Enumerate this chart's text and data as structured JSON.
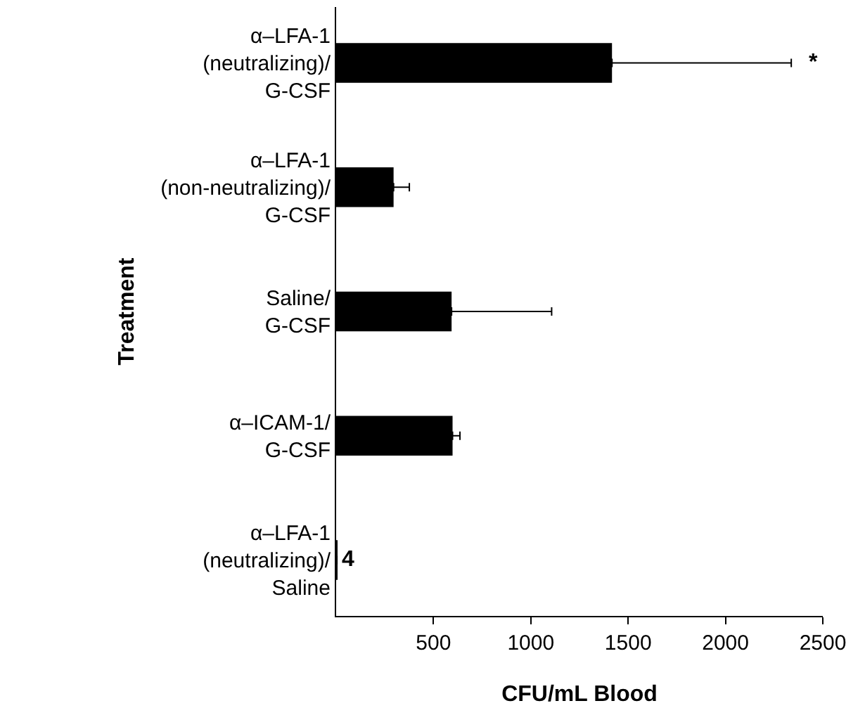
{
  "chart_data": {
    "type": "bar",
    "orientation": "horizontal",
    "categories": [
      "α–LFA-1 (neutralizing)/ G-CSF",
      "α–LFA-1 (non-neutralizing)/ G-CSF",
      "Saline/ G-CSF",
      "α–ICAM-1/ G-CSF",
      "α–LFA-1 (neutralizing)/ Saline"
    ],
    "values": [
      1417,
      295,
      593,
      598,
      4
    ],
    "errors": [
      [
        1417,
        2338
      ],
      [
        295,
        376
      ],
      [
        593,
        1107
      ],
      [
        598,
        636
      ],
      null
    ],
    "value_labels": [
      null,
      null,
      null,
      null,
      "4"
    ],
    "color": "#000000",
    "xlabel": "CFU/mL Blood",
    "ylabel": "Treatment",
    "xlim": [
      0,
      2500
    ],
    "xticks": [
      500,
      1000,
      1500,
      2000,
      2500
    ],
    "annotations": [
      {
        "text": "*",
        "x": 2338,
        "y": "α–LFA-1 (neutralizing)/ G-CSF"
      }
    ],
    "legend": false
  }
}
